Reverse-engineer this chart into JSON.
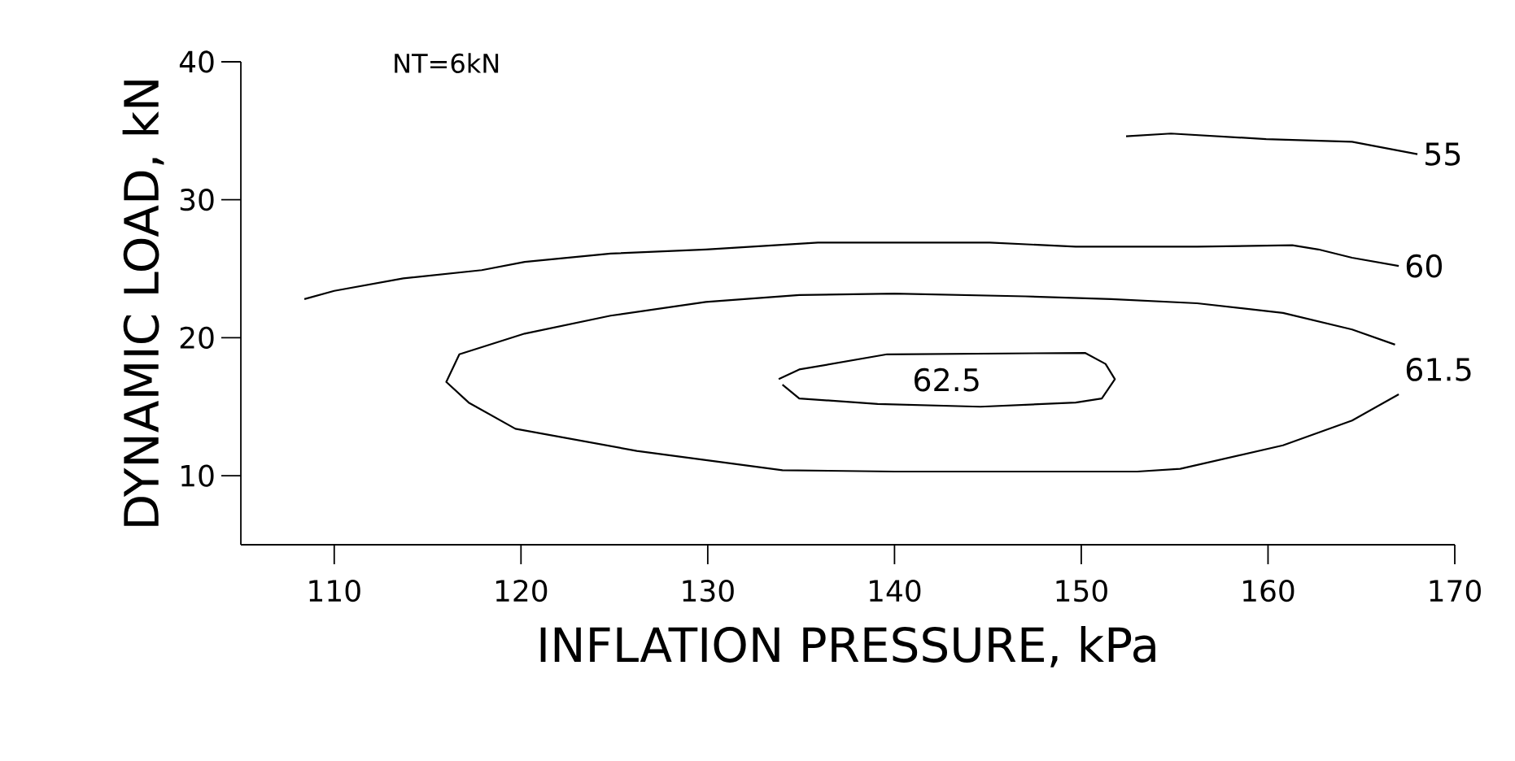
{
  "chart_data": {
    "type": "line",
    "xlabel": "INFLATION PRESSURE, kPa",
    "ylabel": "DYNAMIC LOAD, kN",
    "annotations": [
      "NT=6kN"
    ],
    "xlim": [
      105,
      170
    ],
    "xticks": [
      110,
      120,
      130,
      140,
      150,
      160,
      170
    ],
    "ylim": [
      5,
      40
    ],
    "yticks": [
      10,
      20,
      30,
      40
    ],
    "series": [
      {
        "name": "55",
        "color": "#000000",
        "x": [
          152.4,
          154.8,
          159.9,
          164.5,
          168.0
        ],
        "values": [
          34.6,
          34.8,
          34.4,
          34.2,
          33.3
        ]
      },
      {
        "name": "60",
        "color": "#000000",
        "x": [
          108.4,
          110,
          113.7,
          117.9,
          120.2,
          124.8,
          129.9,
          135.9,
          140,
          145.1,
          149.7,
          156.2,
          161.3,
          162.7,
          164.5,
          167.0
        ],
        "values": [
          22.8,
          23.4,
          24.3,
          24.9,
          25.5,
          26.1,
          26.4,
          26.9,
          26.9,
          26.9,
          26.6,
          26.6,
          26.7,
          26.4,
          25.8,
          25.2
        ]
      },
      {
        "name": "61.5",
        "color": "#000000",
        "x": [
          166.8,
          164.5,
          160.8,
          156.2,
          151.6,
          147.0,
          140.0,
          134.9,
          129.9,
          124.8,
          120.2,
          116.7,
          116.0,
          117.2,
          119.7,
          126.2,
          134.0,
          140.0,
          153.0,
          155.3,
          160.8,
          164.5,
          167.0
        ],
        "values": [
          19.5,
          20.6,
          21.8,
          22.5,
          22.8,
          23.0,
          23.2,
          23.1,
          22.6,
          21.6,
          20.3,
          18.8,
          16.8,
          15.3,
          13.4,
          11.8,
          10.4,
          10.3,
          10.3,
          10.5,
          12.2,
          14.0,
          15.9
        ]
      },
      {
        "name": "62.5",
        "color": "#000000",
        "x": [
          133.8,
          134.9,
          139.6,
          150.2,
          151.3,
          151.8,
          151.1,
          149.7,
          144.6,
          139.1,
          134.9,
          134.0
        ],
        "values": [
          17.0,
          17.7,
          18.8,
          18.9,
          18.1,
          17.0,
          15.6,
          15.3,
          15.0,
          15.2,
          15.6,
          16.6
        ]
      }
    ]
  }
}
